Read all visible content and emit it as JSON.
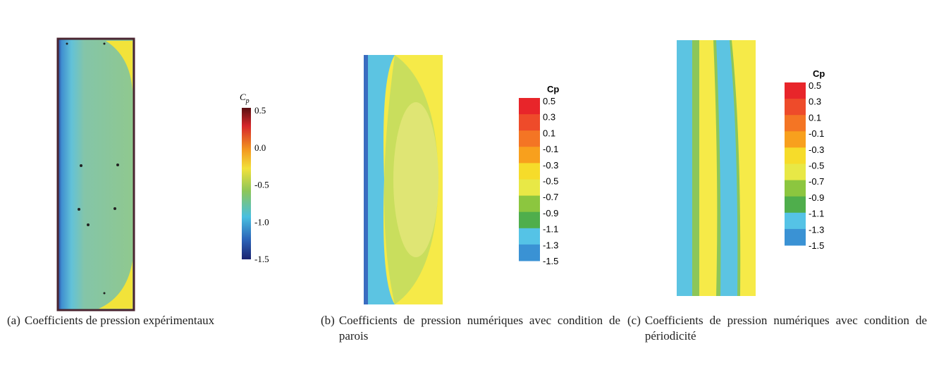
{
  "panels": [
    {
      "colorbar": {
        "title": {
          "base": "C",
          "sub": "p"
        },
        "ticks": [
          "0.5",
          "0.0",
          "-0.5",
          "-1.0",
          "-1.5"
        ]
      },
      "caption": {
        "label": "(a)",
        "text": "Coefficients de pression expérimentaux"
      }
    },
    {
      "colorbar": {
        "title": "Cp",
        "ticks": [
          "0.5",
          "0.3",
          "0.1",
          "-0.1",
          "-0.3",
          "-0.5",
          "-0.7",
          "-0.9",
          "-1.1",
          "-1.3",
          "-1.5"
        ]
      },
      "caption": {
        "label": "(b)",
        "text": "Coefficients de pression numériques avec condition de parois"
      }
    },
    {
      "colorbar": {
        "title": "Cp",
        "ticks": [
          "0.5",
          "0.3",
          "0.1",
          "-0.1",
          "-0.3",
          "-0.5",
          "-0.7",
          "-0.9",
          "-1.1",
          "-1.3",
          "-1.5"
        ]
      },
      "caption": {
        "label": "(c)",
        "text": "Coefficients de pression numériques avec condition de périodicité"
      }
    }
  ]
}
